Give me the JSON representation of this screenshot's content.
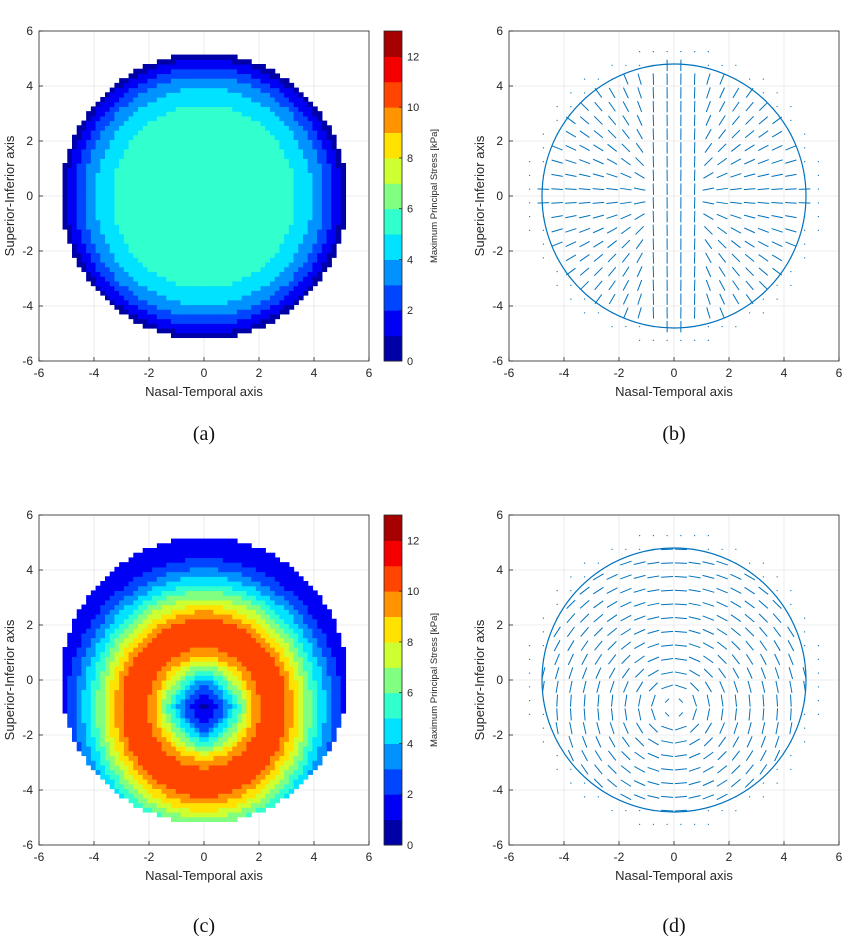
{
  "panels": [
    {
      "id": "a",
      "caption": "(a)",
      "kind": "contour",
      "xlabel": "Nasal-Temporal axis",
      "ylabel": "Superior-Inferior axis",
      "colorbar_label": "Maximum Principal Stress [kPa]"
    },
    {
      "id": "b",
      "caption": "(b)",
      "kind": "quiver",
      "xlabel": "Nasal-Temporal axis",
      "ylabel": "Superior-Inferior axis"
    },
    {
      "id": "c",
      "caption": "(c)",
      "kind": "contour",
      "xlabel": "Nasal-Temporal axis",
      "ylabel": "Superior-Inferior axis",
      "colorbar_label": "Maximum Principal Stress [kPa]"
    },
    {
      "id": "d",
      "caption": "(d)",
      "kind": "quiver",
      "xlabel": "Nasal-Temporal axis",
      "ylabel": "Superior-Inferior axis"
    }
  ],
  "colors": {
    "vector": "#0072BD",
    "grid": "#e6e6e6",
    "axis": "#262626"
  },
  "colormap": "jet",
  "chart_data": [
    {
      "panel": "a",
      "type": "heatmap",
      "xlim": [
        -6,
        6
      ],
      "ylim": [
        -6,
        6
      ],
      "xticks": [
        -6,
        -4,
        -2,
        0,
        2,
        4,
        6
      ],
      "yticks": [
        -6,
        -4,
        -2,
        0,
        2,
        4,
        6
      ],
      "disk_radius": 5.2,
      "grid": true,
      "color_range": [
        0,
        13
      ],
      "colorbar_ticks": [
        0,
        2,
        4,
        6,
        8,
        10,
        12
      ],
      "contour_levels": [
        0,
        1,
        2,
        3,
        4,
        5,
        6,
        7,
        8,
        9,
        10,
        11,
        12,
        13
      ],
      "field": "uniform centre ~5 kPa inside r≈3.3, decreasing to ~0.5 kPa near the rim",
      "radial_profile": [
        [
          0,
          5.3
        ],
        [
          3.2,
          5.2
        ],
        [
          3.8,
          4.3
        ],
        [
          4.3,
          3.2
        ],
        [
          4.7,
          2.0
        ],
        [
          5.0,
          1.0
        ],
        [
          5.2,
          0.5
        ]
      ]
    },
    {
      "panel": "b",
      "type": "quiver",
      "xlim": [
        -6,
        6
      ],
      "ylim": [
        -6,
        6
      ],
      "xticks": [
        -6,
        -4,
        -2,
        0,
        2,
        4,
        6
      ],
      "yticks": [
        -6,
        -4,
        -2,
        0,
        2,
        4,
        6
      ],
      "grid": true,
      "boundary_radius": 4.8,
      "pattern": "radial principal directions with near-vertical vectors in the central band |x|<1"
    },
    {
      "panel": "c",
      "type": "heatmap",
      "xlim": [
        -6,
        6
      ],
      "ylim": [
        -6,
        6
      ],
      "xticks": [
        -6,
        -4,
        -2,
        0,
        2,
        4,
        6
      ],
      "yticks": [
        -6,
        -4,
        -2,
        0,
        2,
        4,
        6
      ],
      "disk_radius": 5.2,
      "grid": true,
      "color_range": [
        0,
        13
      ],
      "colorbar_ticks": [
        0,
        2,
        4,
        6,
        8,
        10,
        12
      ],
      "contour_levels": [
        0,
        1,
        2,
        3,
        4,
        5,
        6,
        7,
        8,
        9,
        10,
        11,
        12,
        13
      ],
      "field": "low-stress core at (0,-1), ring of high stress ~10-12 kPa at r≈2.5 around it, decreasing to ~1 kPa at the rim",
      "low_centre": [
        0,
        -1
      ],
      "radial_profile": [
        [
          0,
          0.5
        ],
        [
          0.7,
          3
        ],
        [
          1.2,
          6
        ],
        [
          1.8,
          9
        ],
        [
          2.4,
          11
        ],
        [
          3.0,
          10.5
        ],
        [
          3.6,
          8
        ],
        [
          4.3,
          5
        ],
        [
          5.0,
          2.5
        ],
        [
          5.6,
          1.0
        ]
      ]
    },
    {
      "panel": "d",
      "type": "quiver",
      "xlim": [
        -6,
        6
      ],
      "ylim": [
        -6,
        6
      ],
      "xticks": [
        -6,
        -4,
        -2,
        0,
        2,
        4,
        6
      ],
      "yticks": [
        -6,
        -4,
        -2,
        0,
        2,
        4,
        6
      ],
      "grid": true,
      "boundary_radius": 4.8,
      "centre": [
        0,
        -1
      ],
      "pattern": "circumferential principal directions around (0,-1)"
    }
  ]
}
